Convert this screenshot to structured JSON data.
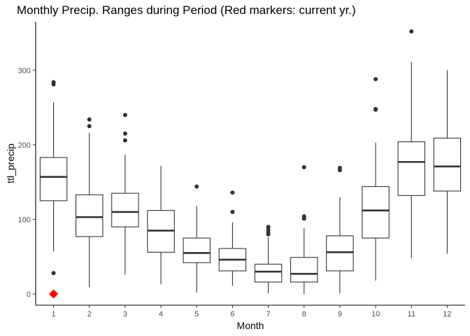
{
  "chart_data": {
    "type": "box",
    "title": "Monthly Precip. Ranges during Period (Red markers: current yr.)",
    "xlabel": "Month",
    "ylabel": "ttl_precip",
    "ylim": [
      -15,
      365
    ],
    "yticks": [
      0,
      100,
      200,
      300
    ],
    "grid": false,
    "categories": [
      "1",
      "2",
      "3",
      "4",
      "5",
      "6",
      "7",
      "8",
      "9",
      "10",
      "11",
      "12"
    ],
    "boxes": [
      {
        "month": "1",
        "whisker_low": 57,
        "q1": 125,
        "median": 157,
        "q3": 183,
        "whisker_high": 257,
        "outliers": [
          28,
          281,
          284
        ]
      },
      {
        "month": "2",
        "whisker_low": 9,
        "q1": 77,
        "median": 103,
        "q3": 133,
        "whisker_high": 216,
        "outliers": [
          225,
          234
        ]
      },
      {
        "month": "3",
        "whisker_low": 26,
        "q1": 90,
        "median": 110,
        "q3": 135,
        "whisker_high": 187,
        "outliers": [
          206,
          215,
          240
        ]
      },
      {
        "month": "4",
        "whisker_low": 13,
        "q1": 56,
        "median": 85,
        "q3": 112,
        "whisker_high": 172,
        "outliers": []
      },
      {
        "month": "5",
        "whisker_low": 2,
        "q1": 42,
        "median": 55,
        "q3": 75,
        "whisker_high": 118,
        "outliers": [
          144
        ]
      },
      {
        "month": "6",
        "whisker_low": 11,
        "q1": 31,
        "median": 46,
        "q3": 61,
        "whisker_high": 96,
        "outliers": [
          110,
          136
        ]
      },
      {
        "month": "7",
        "whisker_low": 1,
        "q1": 16,
        "median": 30,
        "q3": 40,
        "whisker_high": 76,
        "outliers": [
          80,
          82,
          86,
          90
        ]
      },
      {
        "month": "8",
        "whisker_low": 0,
        "q1": 16,
        "median": 27,
        "q3": 49,
        "whisker_high": 88,
        "outliers": [
          101,
          104,
          170
        ]
      },
      {
        "month": "9",
        "whisker_low": 1,
        "q1": 31,
        "median": 56,
        "q3": 78,
        "whisker_high": 130,
        "outliers": [
          166,
          169
        ]
      },
      {
        "month": "10",
        "whisker_low": 18,
        "q1": 75,
        "median": 112,
        "q3": 144,
        "whisker_high": 203,
        "outliers": [
          247,
          248,
          288
        ]
      },
      {
        "month": "11",
        "whisker_low": 48,
        "q1": 132,
        "median": 177,
        "q3": 204,
        "whisker_high": 311,
        "outliers": [
          352
        ]
      },
      {
        "month": "12",
        "whisker_low": 54,
        "q1": 138,
        "median": 171,
        "q3": 209,
        "whisker_high": 300,
        "outliers": []
      }
    ],
    "current_year": [
      {
        "month": "1",
        "value": 0
      }
    ],
    "colors": {
      "box_line": "#333333",
      "outlier": "#333333",
      "current_marker": "#ff0000",
      "axis": "#000000",
      "tick_label": "#4d4d4d"
    }
  }
}
